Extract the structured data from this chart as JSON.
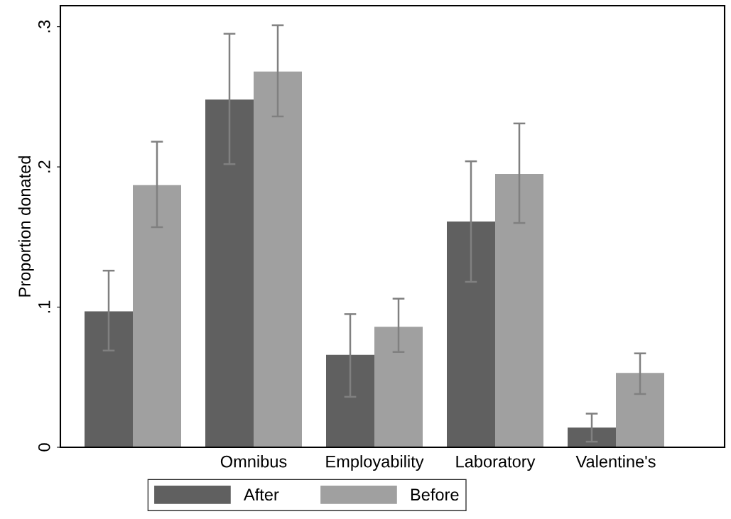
{
  "chart_data": {
    "type": "bar",
    "ylabel": "Proportion donated",
    "categories": [
      null,
      "Omnibus",
      "Employability",
      "Laboratory",
      "Valentine's"
    ],
    "series": [
      {
        "name": "After",
        "color": "#606060",
        "values": [
          0.097,
          0.248,
          0.066,
          0.161,
          0.014
        ],
        "errors": [
          [
            0.069,
            0.126
          ],
          [
            0.202,
            0.295
          ],
          [
            0.036,
            0.095
          ],
          [
            0.118,
            0.204
          ],
          [
            0.004,
            0.024
          ]
        ]
      },
      {
        "name": "Before",
        "color": "#a0a0a0",
        "values": [
          0.187,
          0.268,
          0.086,
          0.195,
          0.053
        ],
        "errors": [
          [
            0.157,
            0.218
          ],
          [
            0.236,
            0.301
          ],
          [
            0.068,
            0.106
          ],
          [
            0.16,
            0.231
          ],
          [
            0.038,
            0.067
          ]
        ]
      }
    ],
    "ylim": [
      0,
      0.315
    ],
    "yticks": [
      {
        "value": 0,
        "label": "0"
      },
      {
        "value": 0.1,
        "label": ".1"
      },
      {
        "value": 0.2,
        "label": ".2"
      },
      {
        "value": 0.3,
        "label": ".3"
      }
    ],
    "grid": false,
    "legend": "bottom"
  }
}
